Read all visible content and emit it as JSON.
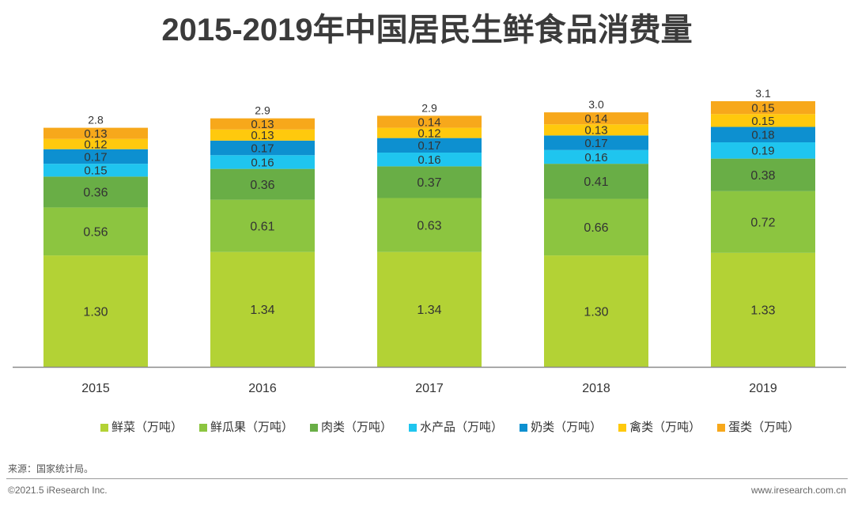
{
  "chart_data": {
    "type": "bar",
    "stacked": true,
    "title": "2015-2019年中国居民生鲜食品消费量",
    "xlabel": "",
    "ylabel": "",
    "categories": [
      "2015",
      "2016",
      "2017",
      "2018",
      "2019"
    ],
    "series": [
      {
        "name": "鲜菜（万吨）",
        "color": "#b3d235",
        "values": [
          1.3,
          1.34,
          1.34,
          1.3,
          1.33
        ]
      },
      {
        "name": "鲜瓜果（万吨）",
        "color": "#8cc540",
        "values": [
          0.56,
          0.61,
          0.63,
          0.66,
          0.72
        ]
      },
      {
        "name": "肉类（万吨）",
        "color": "#69ae46",
        "values": [
          0.36,
          0.36,
          0.37,
          0.41,
          0.38
        ]
      },
      {
        "name": "水产品（万吨）",
        "color": "#1fc5ef",
        "values": [
          0.15,
          0.16,
          0.16,
          0.16,
          0.19
        ]
      },
      {
        "name": "奶类（万吨）",
        "color": "#0d90d0",
        "values": [
          0.17,
          0.17,
          0.17,
          0.17,
          0.18
        ]
      },
      {
        "name": "禽类（万吨）",
        "color": "#ffc90d",
        "values": [
          0.12,
          0.13,
          0.12,
          0.13,
          0.15
        ]
      },
      {
        "name": "蛋类（万吨）",
        "color": "#f7a81b",
        "values": [
          0.13,
          0.13,
          0.14,
          0.14,
          0.15
        ]
      }
    ],
    "totals": [
      "2.8",
      "2.9",
      "2.9",
      "3.0",
      "3.1"
    ],
    "ylim": [
      0,
      3.1
    ],
    "grid": false,
    "legend_position": "bottom",
    "axis_color": "#8a8a8a"
  },
  "footer": {
    "source": "来源：国家统计局。",
    "copyright": "©2021.5 iResearch Inc.",
    "website": "www.iresearch.com.cn"
  }
}
